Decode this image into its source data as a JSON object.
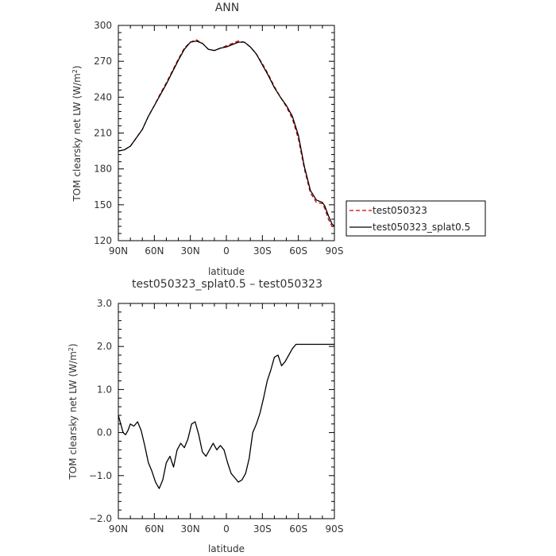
{
  "chart_data": [
    {
      "type": "line",
      "title": "ANN",
      "xlabel": "latitude",
      "ylabel": "TOM clearsky net LW (W/m²)",
      "ylabel_main": "TOM clearsky net LW (W/m",
      "ylabel_sup": "2",
      "ylabel_end": ")",
      "xlim": [
        -90,
        90
      ],
      "ylim": [
        120,
        300
      ],
      "x_ticks": [
        {
          "v": -90,
          "label": "90N"
        },
        {
          "v": -60,
          "label": "60N"
        },
        {
          "v": -30,
          "label": "30N"
        },
        {
          "v": 0,
          "label": "0"
        },
        {
          "v": 30,
          "label": "30S"
        },
        {
          "v": 60,
          "label": "60S"
        },
        {
          "v": 90,
          "label": "90S"
        }
      ],
      "y_ticks": [
        {
          "v": 120,
          "label": "120"
        },
        {
          "v": 150,
          "label": "150"
        },
        {
          "v": 180,
          "label": "180"
        },
        {
          "v": 210,
          "label": "210"
        },
        {
          "v": 240,
          "label": "240"
        },
        {
          "v": 270,
          "label": "270"
        },
        {
          "v": 300,
          "label": "300"
        }
      ],
      "legend": {
        "placement": "right"
      },
      "series": [
        {
          "name": "test050323",
          "color": "#cc0000",
          "dash": "5,3",
          "x": [
            -90,
            -85,
            -80,
            -75,
            -70,
            -65,
            -60,
            -55,
            -50,
            -45,
            -40,
            -35,
            -30,
            -25,
            -20,
            -15,
            -10,
            -5,
            0,
            5,
            10,
            15,
            20,
            25,
            30,
            35,
            40,
            45,
            50,
            55,
            60,
            65,
            70,
            75,
            80,
            82,
            85,
            88,
            90
          ],
          "y": [
            195,
            196,
            199,
            206,
            213,
            224,
            233,
            243,
            252,
            262,
            272,
            281,
            286,
            288,
            285,
            280,
            279,
            281,
            283,
            285,
            287,
            286,
            282,
            276,
            268,
            259,
            249,
            240,
            232,
            222,
            205,
            180,
            160,
            152,
            151,
            147,
            138,
            132,
            130
          ]
        },
        {
          "name": "test050323_splat0.5",
          "color": "#000000",
          "dash": "",
          "x": [
            -90,
            -85,
            -80,
            -75,
            -70,
            -65,
            -60,
            -55,
            -50,
            -45,
            -40,
            -35,
            -30,
            -25,
            -20,
            -15,
            -10,
            -5,
            0,
            5,
            10,
            15,
            20,
            25,
            30,
            35,
            40,
            45,
            50,
            55,
            60,
            65,
            70,
            75,
            80,
            82,
            85,
            88,
            90
          ],
          "y": [
            195,
            196,
            199,
            206,
            213,
            224,
            233,
            242,
            251,
            261,
            271,
            280,
            286,
            287,
            285,
            280,
            279,
            281,
            282,
            284,
            286,
            286,
            282,
            276,
            267,
            258,
            248,
            240,
            233,
            224,
            208,
            182,
            162,
            154,
            152,
            149,
            141,
            134,
            132
          ]
        }
      ]
    },
    {
      "type": "line",
      "title": "test050323_splat0.5 – test050323",
      "xlabel": "latitude",
      "ylabel": "TOM clearsky net LW (W/m²)",
      "ylabel_main": "TOM clearsky net LW (W/m",
      "ylabel_sup": "2",
      "ylabel_end": ")",
      "xlim": [
        -90,
        90
      ],
      "ylim": [
        -2.0,
        3.0
      ],
      "x_ticks": [
        {
          "v": -90,
          "label": "90N"
        },
        {
          "v": -60,
          "label": "60N"
        },
        {
          "v": -30,
          "label": "30N"
        },
        {
          "v": 0,
          "label": "0"
        },
        {
          "v": 30,
          "label": "30S"
        },
        {
          "v": 60,
          "label": "60S"
        },
        {
          "v": 90,
          "label": "90S"
        }
      ],
      "y_ticks": [
        {
          "v": -2.0,
          "label": "−2.0"
        },
        {
          "v": -1.0,
          "label": "−1.0"
        },
        {
          "v": 0.0,
          "label": "0.0"
        },
        {
          "v": 1.0,
          "label": "1.0"
        },
        {
          "v": 2.0,
          "label": "2.0"
        },
        {
          "v": 3.0,
          "label": "3.0"
        }
      ],
      "series": [
        {
          "color": "#000000",
          "x": [
            -90,
            -88,
            -86,
            -84,
            -82,
            -80,
            -77,
            -74,
            -71,
            -68,
            -65,
            -62,
            -59,
            -56,
            -53,
            -50,
            -47,
            -44,
            -41,
            -38,
            -35,
            -32,
            -29,
            -26,
            -23,
            -20,
            -17,
            -14,
            -11,
            -8,
            -5,
            -2,
            1,
            4,
            7,
            10,
            13,
            16,
            19,
            22,
            25,
            28,
            31,
            34,
            37,
            40,
            43,
            46,
            49,
            52,
            55,
            58,
            61,
            64,
            67,
            70,
            73,
            76,
            79,
            82,
            85,
            88,
            90
          ],
          "y": [
            0.4,
            0.2,
            0.0,
            -0.05,
            0.05,
            0.2,
            0.15,
            0.25,
            0.05,
            -0.3,
            -0.7,
            -0.9,
            -1.15,
            -1.3,
            -1.1,
            -0.7,
            -0.55,
            -0.8,
            -0.4,
            -0.25,
            -0.35,
            -0.15,
            0.2,
            0.25,
            -0.05,
            -0.45,
            -0.55,
            -0.4,
            -0.25,
            -0.4,
            -0.3,
            -0.4,
            -0.7,
            -0.95,
            -1.05,
            -1.15,
            -1.1,
            -0.95,
            -0.6,
            0.0,
            0.2,
            0.45,
            0.8,
            1.2,
            1.45,
            1.75,
            1.8,
            1.55,
            1.65,
            1.8,
            1.95,
            2.05,
            2.05,
            2.05,
            2.05,
            2.05,
            2.05,
            2.05,
            2.05,
            2.05,
            2.05,
            2.05,
            2.05
          ]
        }
      ]
    }
  ]
}
